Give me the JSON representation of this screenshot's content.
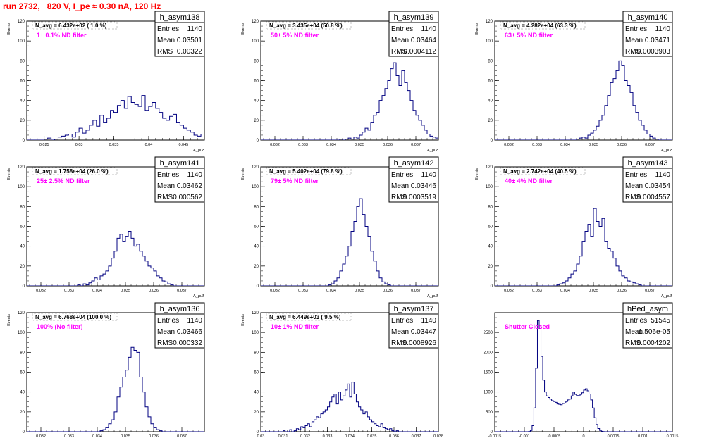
{
  "run_title": "run 2732,   820 V, I_pe ≈ 0.30 nA, 120 Hz",
  "chart_data": [
    {
      "type": "bar",
      "hist_name": "h_asym138",
      "stats": {
        "entries_label": "Entries",
        "entries": "1140",
        "mean_label": "Mean",
        "mean": "0.03501",
        "rms_label": "RMS",
        "rms": "0.00322"
      },
      "nav_text": "N_avg = 6.432e+02 ( 1.0 %)",
      "filter_text": "1± 0.1% ND filter",
      "ylabel": "Events",
      "xlabel": "A_μuδ",
      "ylim": [
        0,
        120
      ],
      "yticks": [
        0,
        20,
        40,
        60,
        80,
        100,
        120
      ],
      "xlim": [
        0.0225,
        0.048
      ],
      "xticks": [
        0.025,
        0.03,
        0.035,
        0.04,
        0.045
      ],
      "xticklabels": [
        "0.025",
        "0.03",
        "0.035",
        "0.04",
        "0.045"
      ],
      "bin_start": 0.0225,
      "bin_width": 0.0005,
      "values": [
        0,
        0,
        0,
        0,
        0,
        1,
        2,
        0,
        1,
        3,
        4,
        5,
        6,
        3,
        8,
        12,
        7,
        10,
        15,
        20,
        14,
        25,
        18,
        22,
        30,
        28,
        35,
        40,
        32,
        44,
        38,
        36,
        34,
        45,
        30,
        34,
        38,
        32,
        28,
        22,
        20,
        24,
        26,
        18,
        15,
        12,
        10,
        8,
        5,
        4,
        6,
        3,
        2,
        1
      ]
    },
    {
      "type": "bar",
      "hist_name": "h_asym139",
      "stats": {
        "entries_label": "Entries",
        "entries": "1140",
        "mean_label": "Mean",
        "mean": "0.03464",
        "rms_label": "RMS",
        "rms": "0.0004112"
      },
      "nav_text": "N_avg = 3.435e+04 (50.8 %)",
      "filter_text": "50± 5% ND filter",
      "ylabel": "Events",
      "xlabel": "A_μuδ",
      "ylim": [
        0,
        120
      ],
      "yticks": [
        0,
        20,
        40,
        60,
        80,
        100,
        120
      ],
      "xlim": [
        0.0315,
        0.0378
      ],
      "xticks": [
        0.032,
        0.033,
        0.034,
        0.035,
        0.036,
        0.037
      ],
      "xticklabels": [
        "0.032",
        "0.033",
        "0.034",
        "0.035",
        "0.036",
        "0.037"
      ],
      "bin_start": 0.0315,
      "bin_width": 0.0001,
      "values": [
        0,
        0,
        0,
        0,
        0,
        0,
        0,
        0,
        0,
        0,
        0,
        0,
        0,
        0,
        0,
        0,
        0,
        0,
        0,
        0,
        0,
        0,
        0,
        0,
        0,
        0,
        0,
        0,
        1,
        0,
        1,
        2,
        1,
        3,
        2,
        5,
        8,
        12,
        10,
        18,
        25,
        28,
        40,
        45,
        52,
        60,
        72,
        78,
        65,
        55,
        70,
        58,
        50,
        40,
        30,
        25,
        20,
        15,
        10,
        6,
        4,
        3,
        2,
        0
      ]
    },
    {
      "type": "bar",
      "hist_name": "h_asym140",
      "stats": {
        "entries_label": "Entries",
        "entries": "1140",
        "mean_label": "Mean",
        "mean": "0.03471",
        "rms_label": "RMS",
        "rms": "0.0003903"
      },
      "nav_text": "N_avg = 4.282e+04 (63.3 %)",
      "filter_text": "63± 5% ND filter",
      "ylabel": "Events",
      "xlabel": "A_μuδ",
      "ylim": [
        0,
        120
      ],
      "yticks": [
        0,
        20,
        40,
        60,
        80,
        100,
        120
      ],
      "xlim": [
        0.0315,
        0.0378
      ],
      "xticks": [
        0.032,
        0.033,
        0.034,
        0.035,
        0.036,
        0.037
      ],
      "xticklabels": [
        "0.032",
        "0.033",
        "0.034",
        "0.035",
        "0.036",
        "0.037"
      ],
      "bin_start": 0.0315,
      "bin_width": 0.0001,
      "values": [
        0,
        0,
        0,
        0,
        0,
        0,
        0,
        0,
        0,
        0,
        0,
        0,
        0,
        0,
        0,
        0,
        0,
        0,
        0,
        0,
        0,
        0,
        0,
        0,
        0,
        0,
        0,
        0,
        0,
        1,
        2,
        3,
        2,
        5,
        7,
        10,
        14,
        20,
        25,
        35,
        45,
        58,
        62,
        70,
        80,
        75,
        60,
        55,
        48,
        35,
        28,
        20,
        15,
        10,
        6,
        4,
        2,
        1,
        0,
        0,
        0,
        0,
        0,
        0
      ]
    },
    {
      "type": "bar",
      "hist_name": "h_asym141",
      "stats": {
        "entries_label": "Entries",
        "entries": "1140",
        "mean_label": "Mean",
        "mean": "0.03462",
        "rms_label": "RMS",
        "rms": "0.000562"
      },
      "nav_text": "N_avg = 1.758e+04 (26.0 %)",
      "filter_text": "25± 2.5% ND filter",
      "ylabel": "Events",
      "xlabel": "A_μuδ",
      "ylim": [
        0,
        120
      ],
      "yticks": [
        0,
        20,
        40,
        60,
        80,
        100,
        120
      ],
      "xlim": [
        0.0315,
        0.0378
      ],
      "xticks": [
        0.032,
        0.033,
        0.034,
        0.035,
        0.036,
        0.037
      ],
      "xticklabels": [
        "0.032",
        "0.033",
        "0.034",
        "0.035",
        "0.036",
        "0.037"
      ],
      "bin_start": 0.0315,
      "bin_width": 0.0001,
      "values": [
        0,
        0,
        0,
        0,
        0,
        0,
        0,
        0,
        0,
        0,
        0,
        0,
        0,
        0,
        0,
        0,
        0,
        0,
        1,
        0,
        2,
        1,
        3,
        5,
        8,
        6,
        10,
        12,
        15,
        20,
        28,
        35,
        48,
        52,
        45,
        50,
        55,
        48,
        40,
        42,
        35,
        30,
        25,
        20,
        18,
        15,
        10,
        8,
        5,
        4,
        2,
        1,
        0,
        0,
        0,
        0,
        0,
        0,
        0,
        0,
        0,
        0,
        0,
        0
      ]
    },
    {
      "type": "bar",
      "hist_name": "h_asym142",
      "stats": {
        "entries_label": "Entries",
        "entries": "1140",
        "mean_label": "Mean",
        "mean": "0.03446",
        "rms_label": "RMS",
        "rms": "0.0003519"
      },
      "nav_text": "N_avg = 5.402e+04 (79.8 %)",
      "filter_text": "79± 5% ND filter",
      "ylabel": "Events",
      "xlabel": "A_μuδ",
      "ylim": [
        0,
        120
      ],
      "yticks": [
        0,
        20,
        40,
        60,
        80,
        100,
        120
      ],
      "xlim": [
        0.0315,
        0.0378
      ],
      "xticks": [
        0.032,
        0.033,
        0.034,
        0.035,
        0.036,
        0.037
      ],
      "xticklabels": [
        "0.032",
        "0.033",
        "0.034",
        "0.035",
        "0.036",
        "0.037"
      ],
      "bin_start": 0.0315,
      "bin_width": 0.0001,
      "values": [
        0,
        0,
        0,
        0,
        0,
        0,
        0,
        0,
        0,
        0,
        0,
        0,
        0,
        0,
        0,
        0,
        0,
        0,
        0,
        0,
        0,
        0,
        0,
        0,
        1,
        2,
        5,
        8,
        15,
        22,
        30,
        40,
        55,
        65,
        80,
        88,
        72,
        60,
        50,
        35,
        25,
        15,
        8,
        4,
        2,
        1,
        0,
        0,
        0,
        0,
        0,
        0,
        0,
        0,
        0,
        0,
        0,
        0,
        0,
        0,
        0,
        0,
        0,
        0
      ]
    },
    {
      "type": "bar",
      "hist_name": "h_asym143",
      "stats": {
        "entries_label": "Entries",
        "entries": "1140",
        "mean_label": "Mean",
        "mean": "0.03454",
        "rms_label": "RMS",
        "rms": "0.0004557"
      },
      "nav_text": "N_avg = 2.742e+04 (40.5 %)",
      "filter_text": "40± 4% ND filter",
      "ylabel": "Events",
      "xlabel": "A_μuδ",
      "ylim": [
        0,
        120
      ],
      "yticks": [
        0,
        20,
        40,
        60,
        80,
        100,
        120
      ],
      "xlim": [
        0.0315,
        0.0378
      ],
      "xticks": [
        0.032,
        0.033,
        0.034,
        0.035,
        0.036,
        0.037
      ],
      "xticklabels": [
        "0.032",
        "0.033",
        "0.034",
        "0.035",
        "0.036",
        "0.037"
      ],
      "bin_start": 0.0315,
      "bin_width": 0.0001,
      "values": [
        0,
        0,
        0,
        0,
        0,
        0,
        0,
        0,
        0,
        0,
        0,
        0,
        0,
        0,
        0,
        0,
        0,
        0,
        0,
        0,
        0,
        0,
        1,
        2,
        3,
        5,
        8,
        12,
        15,
        22,
        30,
        45,
        55,
        62,
        50,
        78,
        65,
        60,
        68,
        45,
        38,
        35,
        28,
        20,
        15,
        10,
        8,
        5,
        4,
        3,
        2,
        1,
        0,
        0,
        0,
        0,
        0,
        0,
        0,
        0,
        0,
        0,
        0,
        0
      ]
    },
    {
      "type": "bar",
      "hist_name": "h_asym136",
      "stats": {
        "entries_label": "Entries",
        "entries": "1140",
        "mean_label": "Mean",
        "mean": "0.03466",
        "rms_label": "RMS",
        "rms": "0.000332"
      },
      "nav_text": "N_avg = 6.768e+04 (100.0 %)",
      "filter_text": "100% (No filter)",
      "ylabel": "Events",
      "xlabel": "A_μuδ",
      "ylim": [
        0,
        120
      ],
      "yticks": [
        0,
        20,
        40,
        60,
        80,
        100,
        120
      ],
      "xlim": [
        0.0315,
        0.0378
      ],
      "xticks": [
        0.032,
        0.033,
        0.034,
        0.035,
        0.036,
        0.037
      ],
      "xticklabels": [
        "0.032",
        "0.033",
        "0.034",
        "0.035",
        "0.036",
        "0.037"
      ],
      "bin_start": 0.0315,
      "bin_width": 0.0001,
      "values": [
        0,
        0,
        0,
        0,
        0,
        0,
        0,
        0,
        0,
        0,
        0,
        0,
        0,
        0,
        0,
        0,
        0,
        0,
        0,
        0,
        0,
        0,
        0,
        0,
        0,
        0,
        1,
        2,
        4,
        8,
        12,
        20,
        35,
        45,
        55,
        62,
        75,
        85,
        82,
        80,
        55,
        40,
        25,
        15,
        8,
        4,
        2,
        1,
        0,
        0,
        0,
        0,
        0,
        0,
        0,
        0,
        0,
        0,
        0,
        0,
        0,
        0,
        0,
        0
      ]
    },
    {
      "type": "bar",
      "hist_name": "h_asym137",
      "stats": {
        "entries_label": "Entries",
        "entries": "1140",
        "mean_label": "Mean",
        "mean": "0.03447",
        "rms_label": "RMS",
        "rms": "0.0008926"
      },
      "nav_text": "N_avg = 6.449e+03 ( 9.5 %)",
      "filter_text": "10± 1% ND filter",
      "ylabel": "Events",
      "xlabel": "A_μuδ",
      "ylim": [
        0,
        120
      ],
      "yticks": [
        0,
        20,
        40,
        60,
        80,
        100,
        120
      ],
      "xlim": [
        0.03,
        0.038
      ],
      "xticks": [
        0.03,
        0.031,
        0.032,
        0.033,
        0.034,
        0.035,
        0.036,
        0.037,
        0.038
      ],
      "xticklabels": [
        "0.03",
        "0.031",
        "0.032",
        "0.033",
        "0.034",
        "0.035",
        "0.036",
        "0.037",
        "0.038"
      ],
      "bin_start": 0.03,
      "bin_width": 0.0001,
      "values": [
        0,
        0,
        0,
        0,
        0,
        0,
        0,
        0,
        0,
        0,
        1,
        0,
        0,
        2,
        0,
        1,
        3,
        2,
        5,
        4,
        6,
        8,
        5,
        10,
        12,
        15,
        14,
        18,
        20,
        22,
        25,
        30,
        35,
        38,
        28,
        40,
        32,
        36,
        42,
        48,
        35,
        50,
        38,
        30,
        25,
        22,
        18,
        20,
        15,
        12,
        10,
        8,
        6,
        5,
        8,
        4,
        3,
        2,
        3,
        1,
        0,
        1,
        0,
        0,
        0,
        0,
        0,
        0,
        0,
        0,
        0,
        0,
        0,
        0,
        0,
        0,
        0,
        0,
        0,
        0
      ]
    },
    {
      "type": "bar",
      "hist_name": "hPed_asym",
      "stats": {
        "entries_label": "Entries",
        "entries": "51545",
        "mean_label": "Mean",
        "mean": "-1.506e-05",
        "rms_label": "RMS",
        "rms": "0.0004202"
      },
      "nav_text": "",
      "filter_text": "Shutter Closed",
      "ylabel": "",
      "xlabel": "",
      "ylim": [
        0,
        3000
      ],
      "yticks": [
        0,
        500,
        1000,
        1500,
        2000,
        2500
      ],
      "xlim": [
        -0.0015,
        0.0015
      ],
      "xticks": [
        -0.0015,
        -0.001,
        -0.0005,
        0,
        0.0005,
        0.001,
        0.0015
      ],
      "xticklabels": [
        "-0.0015",
        "-0.001",
        "-0.0005",
        "0",
        "0.0005",
        "0.001",
        "0.0015"
      ],
      "bin_start": -0.0015,
      "bin_width": 3e-05,
      "values": [
        0,
        0,
        0,
        0,
        0,
        0,
        0,
        0,
        0,
        0,
        0,
        0,
        0,
        0,
        0,
        0,
        0,
        0,
        0,
        5,
        30,
        150,
        600,
        1600,
        2800,
        2600,
        1900,
        1300,
        1000,
        900,
        860,
        820,
        780,
        760,
        740,
        700,
        690,
        680,
        710,
        720,
        760,
        800,
        820,
        900,
        1000,
        940,
        910,
        900,
        940,
        980,
        1050,
        1080,
        1030,
        950,
        800,
        600,
        350,
        180,
        80,
        30,
        10,
        3,
        0,
        0,
        0,
        0,
        0,
        0,
        0,
        0,
        0,
        0,
        0,
        0,
        0,
        0,
        0,
        0,
        0,
        0,
        0,
        0,
        0,
        0,
        0,
        0,
        0,
        0,
        0,
        0,
        0,
        0,
        0,
        0,
        0,
        0,
        0,
        0,
        0,
        0
      ]
    }
  ]
}
